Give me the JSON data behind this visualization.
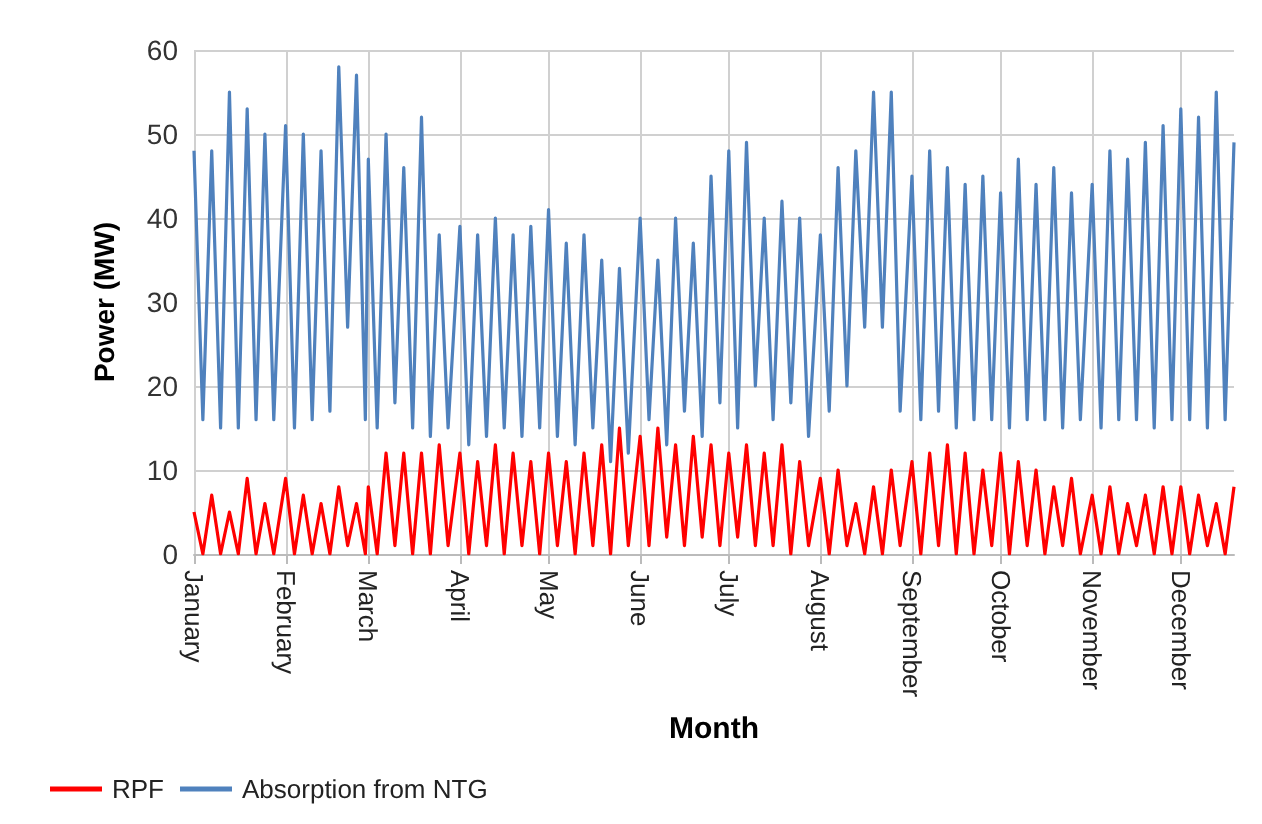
{
  "chart_data": {
    "type": "line",
    "xlabel": "Month",
    "ylabel": "Power (MW)",
    "x": [
      "--01-01",
      "--01-04",
      "--01-07",
      "--01-10",
      "--01-13",
      "--01-16",
      "--01-19",
      "--01-22",
      "--01-25",
      "--01-28",
      "--02-01",
      "--02-04",
      "--02-07",
      "--02-10",
      "--02-13",
      "--02-16",
      "--02-19",
      "--02-22",
      "--02-25",
      "--02-28",
      "--03-01",
      "--03-04",
      "--03-07",
      "--03-10",
      "--03-13",
      "--03-16",
      "--03-19",
      "--03-22",
      "--03-25",
      "--03-28",
      "--04-01",
      "--04-04",
      "--04-07",
      "--04-10",
      "--04-13",
      "--04-16",
      "--04-19",
      "--04-22",
      "--04-25",
      "--04-28",
      "--05-01",
      "--05-04",
      "--05-07",
      "--05-10",
      "--05-13",
      "--05-16",
      "--05-19",
      "--05-22",
      "--05-25",
      "--05-28",
      "--06-01",
      "--06-04",
      "--06-07",
      "--06-10",
      "--06-13",
      "--06-16",
      "--06-19",
      "--06-22",
      "--06-25",
      "--06-28",
      "--07-01",
      "--07-04",
      "--07-07",
      "--07-10",
      "--07-13",
      "--07-16",
      "--07-19",
      "--07-22",
      "--07-25",
      "--07-28",
      "--08-01",
      "--08-04",
      "--08-07",
      "--08-10",
      "--08-13",
      "--08-16",
      "--08-19",
      "--08-22",
      "--08-25",
      "--08-28",
      "--09-01",
      "--09-04",
      "--09-07",
      "--09-10",
      "--09-13",
      "--09-16",
      "--09-19",
      "--09-22",
      "--09-25",
      "--09-28",
      "--10-01",
      "--10-04",
      "--10-07",
      "--10-10",
      "--10-13",
      "--10-16",
      "--10-19",
      "--10-22",
      "--10-25",
      "--10-28",
      "--11-01",
      "--11-04",
      "--11-07",
      "--11-10",
      "--11-13",
      "--11-16",
      "--11-19",
      "--11-22",
      "--11-25",
      "--11-28",
      "--12-01",
      "--12-04",
      "--12-07",
      "--12-10",
      "--12-13",
      "--12-16",
      "--12-19"
    ],
    "series": [
      {
        "name": "RPF",
        "color": "#ff0000",
        "values": [
          5,
          0,
          7,
          0,
          5,
          0,
          9,
          0,
          6,
          0,
          9,
          0,
          7,
          0,
          6,
          0,
          8,
          1,
          6,
          0,
          8,
          0,
          12,
          1,
          12,
          0,
          12,
          0,
          13,
          1,
          12,
          0,
          11,
          1,
          13,
          0,
          12,
          1,
          11,
          0,
          12,
          1,
          11,
          0,
          12,
          1,
          13,
          0,
          15,
          1,
          14,
          1,
          15,
          2,
          13,
          1,
          14,
          2,
          13,
          1,
          12,
          2,
          13,
          1,
          12,
          1,
          13,
          0,
          11,
          1,
          9,
          0,
          10,
          1,
          6,
          0,
          8,
          0,
          10,
          1,
          11,
          0,
          12,
          1,
          13,
          0,
          12,
          0,
          10,
          1,
          12,
          0,
          11,
          1,
          10,
          0,
          8,
          1,
          9,
          0,
          7,
          0,
          8,
          0,
          6,
          1,
          7,
          0,
          8,
          0,
          8,
          0,
          7,
          1,
          6,
          0,
          8
        ]
      },
      {
        "name": "Absorption from NTG",
        "color": "#4f81bd",
        "values": [
          48,
          16,
          48,
          15,
          55,
          15,
          53,
          16,
          50,
          16,
          51,
          15,
          50,
          16,
          48,
          17,
          58,
          27,
          57,
          16,
          47,
          15,
          50,
          18,
          46,
          15,
          52,
          14,
          38,
          15,
          39,
          13,
          38,
          14,
          40,
          15,
          38,
          14,
          39,
          15,
          41,
          14,
          37,
          13,
          38,
          15,
          35,
          11,
          34,
          12,
          40,
          16,
          35,
          13,
          40,
          17,
          37,
          14,
          45,
          18,
          48,
          15,
          49,
          20,
          40,
          16,
          42,
          18,
          40,
          14,
          38,
          17,
          46,
          20,
          48,
          27,
          55,
          27,
          55,
          17,
          45,
          16,
          48,
          17,
          46,
          15,
          44,
          16,
          45,
          16,
          43,
          15,
          47,
          16,
          44,
          16,
          46,
          15,
          43,
          16,
          44,
          15,
          48,
          16,
          47,
          16,
          49,
          15,
          51,
          16,
          53,
          16,
          52,
          15,
          55,
          16,
          49
        ]
      }
    ],
    "xlim": [
      "--01-01",
      "--12-19"
    ],
    "xticks": [
      {
        "value": "--01-01",
        "label": "January"
      },
      {
        "value": "--02-01",
        "label": "February"
      },
      {
        "value": "--03-01",
        "label": "March"
      },
      {
        "value": "--04-01",
        "label": "April"
      },
      {
        "value": "--05-01",
        "label": "May"
      },
      {
        "value": "--06-01",
        "label": "June"
      },
      {
        "value": "--07-01",
        "label": "July"
      },
      {
        "value": "--08-01",
        "label": "August"
      },
      {
        "value": "--09-01",
        "label": "September"
      },
      {
        "value": "--10-01",
        "label": "October"
      },
      {
        "value": "--11-01",
        "label": "November"
      },
      {
        "value": "--12-01",
        "label": "December"
      }
    ],
    "ylim": [
      0,
      60
    ],
    "yticks": [
      0,
      10,
      20,
      30,
      40,
      50,
      60
    ],
    "grid": true,
    "legend": "bottom left",
    "marker": "none",
    "line_style": "solid"
  }
}
